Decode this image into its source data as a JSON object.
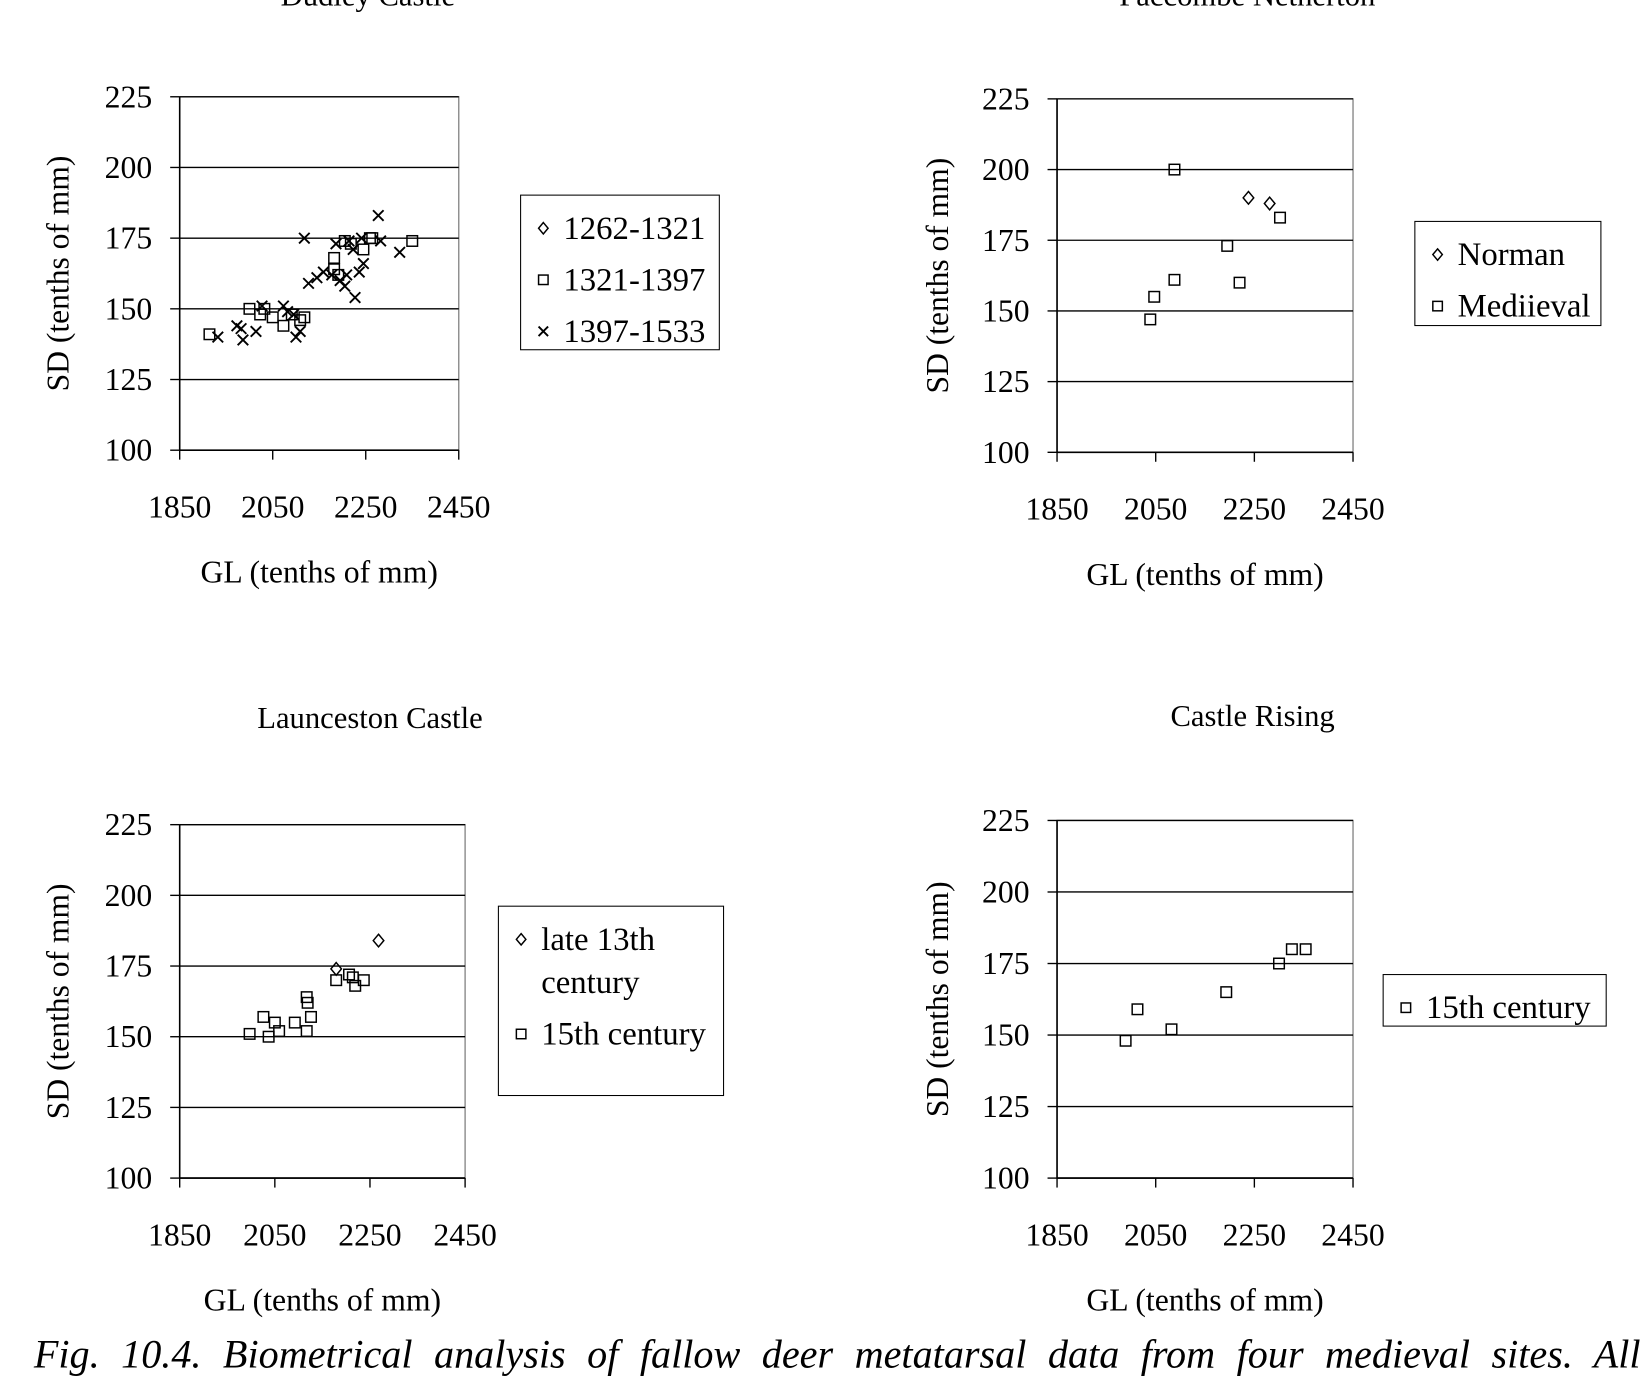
{
  "chart_data": [
    {
      "type": "scatter",
      "title": "Dudley Castle",
      "x_label": "GL (tenths of mm)",
      "y_label": "SD (tenths of mm)",
      "xlim": [
        1850,
        2450
      ],
      "xticks": [
        1850,
        2050,
        2250,
        2450
      ],
      "ylim": [
        100,
        225
      ],
      "yticks": [
        100,
        125,
        150,
        175,
        200,
        225
      ],
      "grid": true,
      "legend": "right",
      "series": [
        {
          "name": "1262-1321",
          "marker": "diamond",
          "color": "#000000",
          "x": [],
          "y": []
        },
        {
          "name": "1321-1397",
          "marker": "square",
          "color": "#000000",
          "x": [
            1914,
            2000,
            2023,
            2032,
            2050,
            2073,
            2091,
            2109,
            2118,
            2182,
            2182,
            2191,
            2205,
            2218,
            2245,
            2259,
            2264,
            2350
          ],
          "y": [
            141,
            150,
            148,
            150,
            147,
            144,
            148,
            146,
            147,
            168,
            164,
            162,
            174,
            173,
            171,
            175,
            175,
            174
          ]
        },
        {
          "name": "1397-1533",
          "marker": "x",
          "color": "#000000",
          "x": [
            1932,
            1973,
            1986,
            1982,
            2014,
            2027,
            2073,
            2082,
            2095,
            2100,
            2109,
            2118,
            2127,
            2145,
            2159,
            2177,
            2186,
            2195,
            2205,
            2214,
            2223,
            2227,
            2236,
            2241,
            2245,
            2277,
            2282,
            2323,
            2209
          ],
          "y": [
            140,
            144,
            139,
            143,
            142,
            151,
            151,
            149,
            148,
            140,
            142,
            175,
            159,
            161,
            163,
            162,
            173,
            160,
            158,
            174,
            171,
            154,
            163,
            175,
            166,
            183,
            174,
            170,
            162
          ]
        }
      ]
    },
    {
      "type": "scatter",
      "title": "Faccombe Netherton",
      "x_label": "GL (tenths of mm)",
      "y_label": "SD (tenths of mm)",
      "xlim": [
        1850,
        2450
      ],
      "xticks": [
        1850,
        2050,
        2250,
        2450
      ],
      "ylim": [
        100,
        225
      ],
      "yticks": [
        100,
        125,
        150,
        175,
        200,
        225
      ],
      "grid": true,
      "legend": "right",
      "series": [
        {
          "name": "Norman",
          "marker": "diamond",
          "color": "#000000",
          "x": [
            2238,
            2281
          ],
          "y": [
            190,
            188
          ]
        },
        {
          "name": "Mediieval",
          "marker": "square",
          "color": "#000000",
          "x": [
            2088,
            2302,
            2195,
            2220,
            2088,
            2047,
            2039
          ],
          "y": [
            200,
            183,
            173,
            160,
            161,
            155,
            147
          ]
        }
      ]
    },
    {
      "type": "scatter",
      "title": "Launceston Castle",
      "x_label": "GL (tenths of mm)",
      "y_label": "SD (tenths of mm)",
      "xlim": [
        1850,
        2450
      ],
      "xticks": [
        1850,
        2050,
        2250,
        2450
      ],
      "ylim": [
        100,
        225
      ],
      "yticks": [
        100,
        125,
        150,
        175,
        200,
        225
      ],
      "grid": true,
      "legend": "right",
      "series": [
        {
          "name": "late 13th century",
          "marker": "diamond",
          "color": "#000000",
          "x": [
            2179,
            2268
          ],
          "y": [
            174,
            184
          ]
        },
        {
          "name": "15th century",
          "marker": "square",
          "color": "#000000",
          "x": [
            1997,
            2026,
            2037,
            2050,
            2059,
            2092,
            2117,
            2117,
            2119,
            2126,
            2179,
            2206,
            2214,
            2219,
            2237
          ],
          "y": [
            151,
            157,
            150,
            155,
            152,
            155,
            152,
            164,
            162,
            157,
            170,
            172,
            171,
            168,
            170
          ]
        }
      ]
    },
    {
      "type": "scatter",
      "title": "Castle Rising",
      "x_label": "GL (tenths of mm)",
      "y_label": "SD (tenths of mm)",
      "xlim": [
        1850,
        2450
      ],
      "xticks": [
        1850,
        2050,
        2250,
        2450
      ],
      "ylim": [
        100,
        225
      ],
      "yticks": [
        100,
        125,
        150,
        175,
        200,
        225
      ],
      "grid": true,
      "legend": "right",
      "series": [
        {
          "name": "15th century",
          "marker": "square",
          "color": "#000000",
          "x": [
            1989,
            2013,
            2082,
            2193,
            2300,
            2326,
            2354
          ],
          "y": [
            148,
            159,
            152,
            165,
            175,
            180,
            180
          ]
        }
      ]
    }
  ],
  "caption": "Fig. 10.4. Biometrical analysis of fallow deer metatarsal data from four medieval sites. All"
}
